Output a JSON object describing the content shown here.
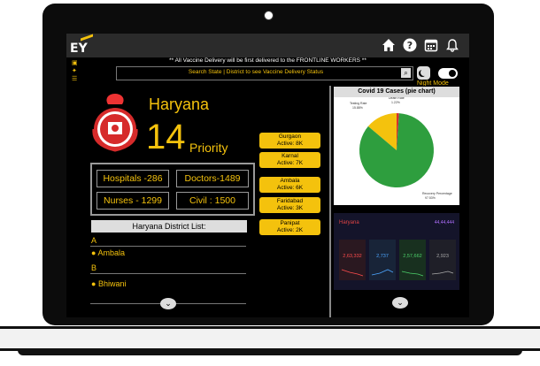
{
  "header": {
    "logo_text": "EY",
    "icons": [
      "home-icon",
      "help-icon",
      "calendar-icon",
      "bell-icon"
    ],
    "banner": "** All  Vaccine Delivery will be first delivered to the FRONTLINE WORKERS **"
  },
  "search": {
    "placeholder": "Search  State | District to see Vaccine Delivery Status"
  },
  "night_mode_label": "Night Mode",
  "state": {
    "name": "Haryana",
    "priority_number": "14",
    "priority_label": "Priority"
  },
  "stats": {
    "hospitals": "Hospitals -286",
    "doctors": "Doctors-1489",
    "nurses": "Nurses - 1299",
    "civil": "Civil : 1500"
  },
  "district_list": {
    "header": "Haryana District List:",
    "groups": [
      {
        "letter": "A",
        "item": "Ambala"
      },
      {
        "letter": "B",
        "item": "Bhiwani"
      }
    ]
  },
  "districts": [
    {
      "name": "Gurgaon",
      "active": "Active: 8K"
    },
    {
      "name": "Karnal",
      "active": "Active: 7K"
    },
    {
      "name": "Ambala",
      "active": "Active: 6K"
    },
    {
      "name": "Faridabad",
      "active": "Active: 3K"
    },
    {
      "name": "Panipat",
      "active": "Active: 2K"
    }
  ],
  "colors": {
    "accent": "#f4c20d",
    "background": "#000000",
    "pie_green": "#2e9e3e",
    "pie_yellow": "#f4c20d",
    "pie_red": "#d32f2f"
  },
  "chart_data": {
    "type": "pie",
    "title": "Covid 19  Cases (pie chart)",
    "labels": [
      "Testing Rate",
      "Death Rate",
      "Recovery Percentage"
    ],
    "values": [
      15.88,
      1.22,
      97.53
    ],
    "value_labels": [
      "15.88%",
      "1.22%",
      "97.53%"
    ]
  },
  "dashboard": {
    "state": "Haryana",
    "total": "44,44,444",
    "confirmed": "2,63,332",
    "active": "2,737",
    "recovered": "2,57,662",
    "deceased": "2,923"
  }
}
